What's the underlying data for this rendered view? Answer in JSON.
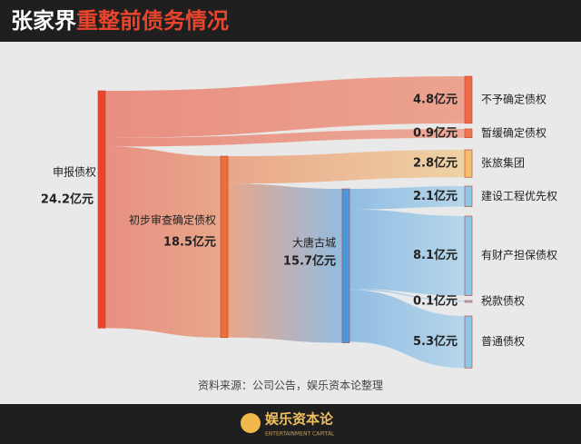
{
  "header": {
    "title_prefix": "张家界",
    "title_main": "重整前债务情况"
  },
  "chart_data": {
    "type": "sankey",
    "nodes": [
      "申报债权",
      "初步审查确定债权",
      "大唐古城",
      "不予确定债权",
      "暂缓确定债权",
      "张旅集团",
      "建设工程优先权",
      "有财产担保债权",
      "税款债权",
      "普通债权"
    ],
    "values": [
      24.2,
      18.5,
      15.7,
      4.8,
      0.9,
      2.8,
      2.1,
      8.1,
      0.1,
      5.3
    ],
    "value_labels": [
      "24.2亿元",
      "18.5亿元",
      "15.7亿元",
      "4.8亿元",
      "0.9亿元",
      "2.8亿元",
      "2.1亿元",
      "8.1亿元",
      "0.1亿元",
      "5.3亿元"
    ],
    "colors": [
      "#e8452c",
      "#e8703c",
      "#4a98dc",
      "#ee6a45",
      "#ef7552",
      "#f3bf6c",
      "#8cc8ec",
      "#8cc8ec",
      "#8cc8ec",
      "#8cc8ec"
    ],
    "links": [
      {
        "source": 0,
        "target": 3,
        "value": 4.8
      },
      {
        "source": 0,
        "target": 4,
        "value": 0.9
      },
      {
        "source": 0,
        "target": 1,
        "value": 18.5
      },
      {
        "source": 1,
        "target": 5,
        "value": 2.8
      },
      {
        "source": 1,
        "target": 2,
        "value": 15.7
      },
      {
        "source": 2,
        "target": 6,
        "value": 2.1
      },
      {
        "source": 2,
        "target": 7,
        "value": 8.1
      },
      {
        "source": 2,
        "target": 8,
        "value": 0.1
      },
      {
        "source": 2,
        "target": 9,
        "value": 5.3
      }
    ],
    "source_note": "资料来源：公司公告，娱乐资本论整理"
  },
  "footer": {
    "brand": "娱乐资本论",
    "brand_en": "ENTERTAINMENT CAPITAL"
  }
}
